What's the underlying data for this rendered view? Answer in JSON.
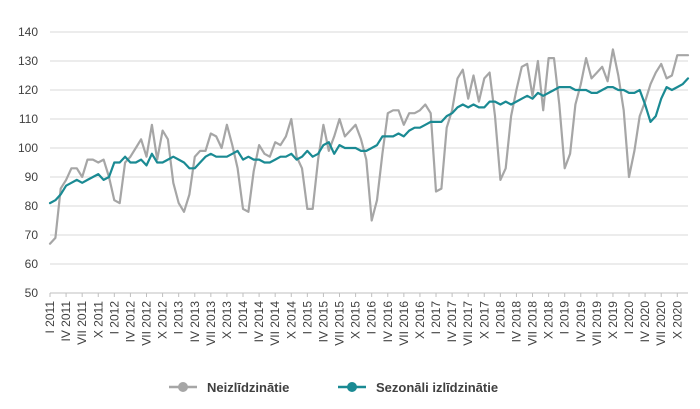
{
  "chart_data": {
    "type": "line",
    "title": "",
    "xlabel": "",
    "ylabel": "",
    "ylim": [
      50,
      140
    ],
    "yticks": [
      50,
      60,
      70,
      80,
      90,
      100,
      110,
      120,
      130,
      140
    ],
    "grid": true,
    "legend_position": "bottom-center",
    "x_tick_labels": [
      "I 2011",
      "IV 2011",
      "VII 2011",
      "X 2011",
      "I 2012",
      "IV 2012",
      "VII 2012",
      "X 2012",
      "I 2013",
      "IV 2013",
      "VII 2013",
      "X 2013",
      "I 2014",
      "IV 2014",
      "VII 2014",
      "X 2014",
      "I 2015",
      "IV 2015",
      "VII 2015",
      "X 2015",
      "I 2016",
      "IV 2016",
      "VII 2016",
      "X 2016",
      "I 2017",
      "IV 2017",
      "VII 2017",
      "X 2017",
      "I 2018",
      "IV 2018",
      "VII 2018",
      "X 2018",
      "I 2019",
      "IV 2019",
      "VII 2019",
      "X 2019",
      "I 2020",
      "IV 2020",
      "VII 2020",
      "X 2020"
    ],
    "series": [
      {
        "name": "Neizlīdzinātie",
        "color": "#a6a6a6",
        "values": [
          67,
          69,
          86,
          89,
          93,
          93,
          90,
          96,
          96,
          95,
          96,
          90,
          82,
          81,
          95,
          97,
          100,
          103,
          97,
          108,
          96,
          106,
          103,
          88,
          81,
          78,
          84,
          97,
          99,
          99,
          105,
          104,
          100,
          108,
          101,
          93,
          79,
          78,
          92,
          101,
          98,
          97,
          102,
          101,
          104,
          110,
          97,
          93,
          79,
          79,
          96,
          108,
          99,
          104,
          110,
          104,
          106,
          108,
          103,
          96,
          75,
          82,
          98,
          112,
          113,
          113,
          108,
          112,
          112,
          113,
          115,
          112,
          85,
          86,
          107,
          113,
          124,
          127,
          117,
          125,
          116,
          124,
          126,
          111,
          89,
          93,
          111,
          120,
          128,
          129,
          118,
          130,
          113,
          131,
          131,
          115,
          93,
          98,
          115,
          122,
          131,
          124,
          126,
          128,
          123,
          134,
          125,
          113,
          90,
          99,
          111,
          116,
          122,
          126,
          129,
          124,
          125,
          132,
          132,
          132
        ]
      },
      {
        "name": "Sezonāli izlīdzinātie",
        "color": "#1a8a93",
        "values": [
          81,
          82,
          84,
          87,
          88,
          89,
          88,
          89,
          90,
          91,
          89,
          90,
          95,
          95,
          97,
          95,
          95,
          96,
          94,
          98,
          95,
          95,
          96,
          97,
          96,
          95,
          93,
          93,
          95,
          97,
          98,
          97,
          97,
          97,
          98,
          99,
          96,
          97,
          96,
          96,
          95,
          95,
          96,
          97,
          97,
          98,
          96,
          97,
          99,
          97,
          98,
          101,
          102,
          98,
          101,
          100,
          100,
          100,
          99,
          99,
          100,
          101,
          104,
          104,
          104,
          105,
          104,
          106,
          107,
          107,
          108,
          109,
          109,
          109,
          111,
          112,
          114,
          115,
          114,
          115,
          114,
          114,
          116,
          116,
          115,
          116,
          115,
          116,
          117,
          118,
          117,
          119,
          118,
          119,
          120,
          121,
          121,
          121,
          120,
          120,
          120,
          119,
          119,
          120,
          121,
          121,
          120,
          120,
          119,
          119,
          120,
          115,
          109,
          111,
          117,
          121,
          120,
          121,
          122,
          124
        ]
      }
    ]
  }
}
